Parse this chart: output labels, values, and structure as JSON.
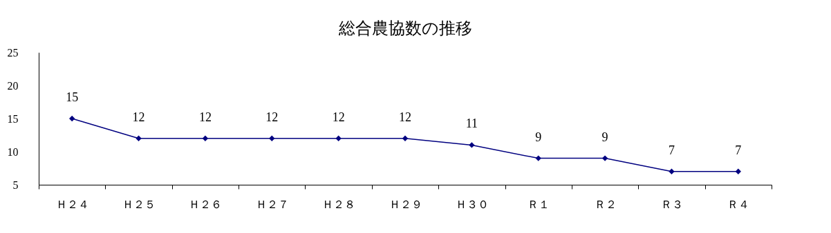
{
  "chart_data": {
    "type": "line",
    "title": "総合農協数の推移",
    "categories": [
      "Ｈ２４",
      "Ｈ２５",
      "Ｈ２６",
      "Ｈ２７",
      "Ｈ２８",
      "Ｈ２９",
      "Ｈ３０",
      "Ｒ１",
      "Ｒ２",
      "Ｒ３",
      "Ｒ４"
    ],
    "series": [
      {
        "color": "#000080",
        "values": [
          15,
          12,
          12,
          12,
          12,
          12,
          11,
          9,
          9,
          7,
          7
        ]
      }
    ],
    "ylim": [
      5,
      25
    ],
    "yticks": [
      5,
      10,
      15,
      20,
      25
    ],
    "grid": false,
    "legend": false,
    "marker": "diamond",
    "line_style": "solid",
    "data_labels": true
  }
}
